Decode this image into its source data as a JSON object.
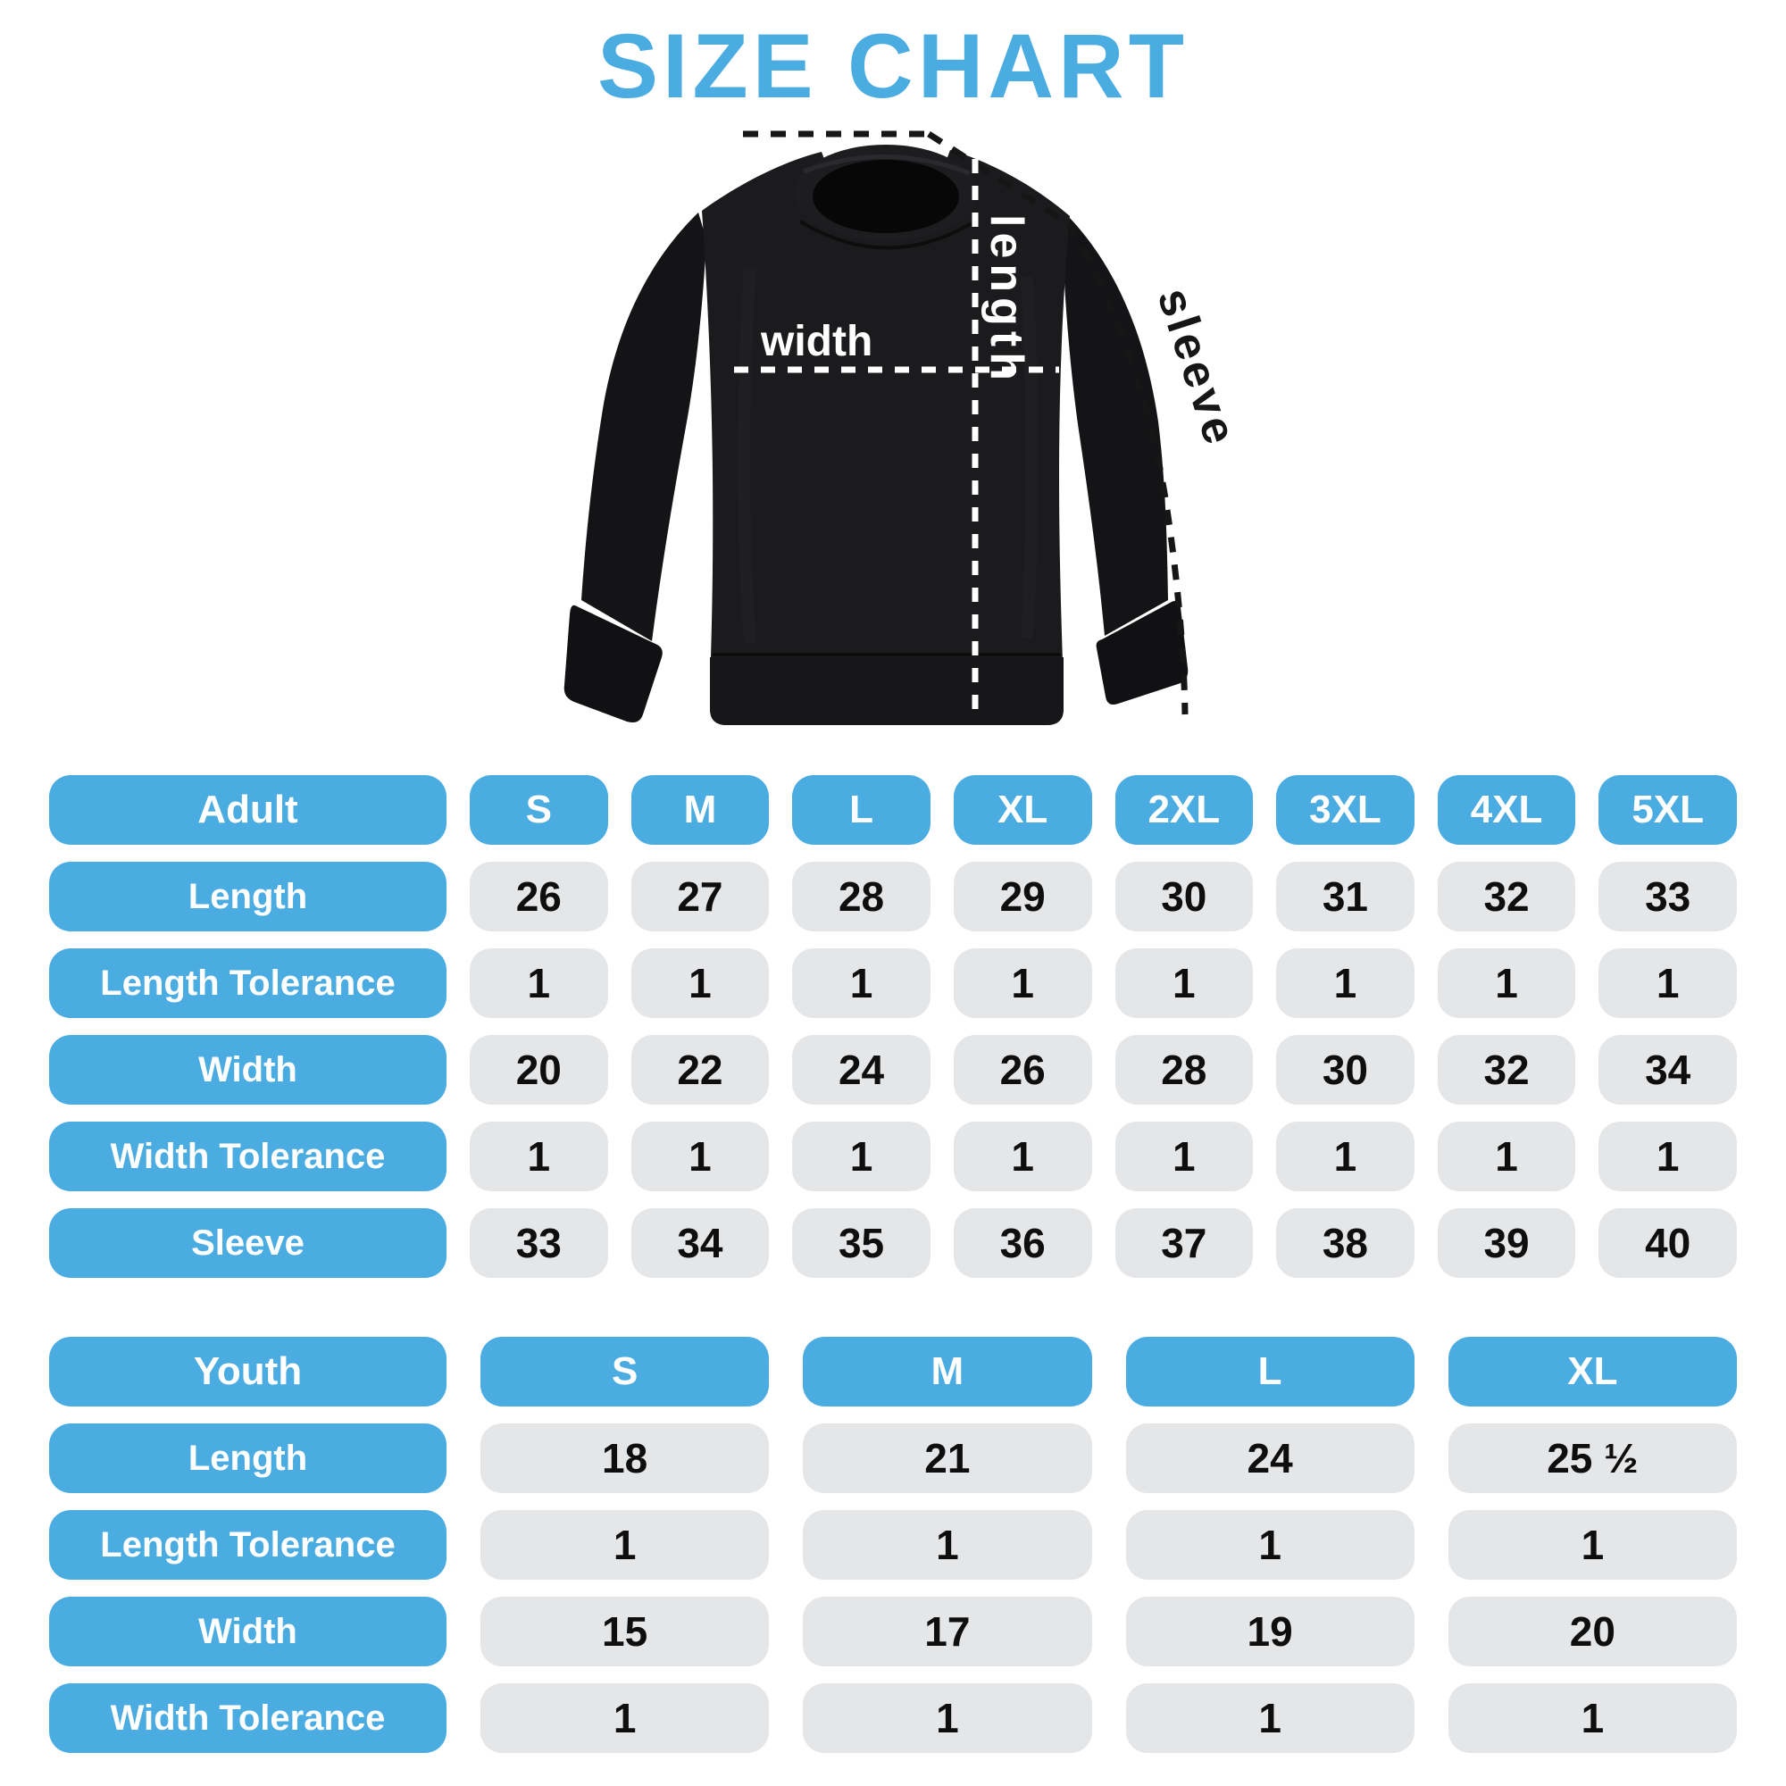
{
  "title": "SIZE CHART",
  "colors": {
    "accent_blue": "#4BACE2",
    "cell_gray": "#E5E6E8",
    "garment_black": "#1b1b1d",
    "label_white": "#ffffff"
  },
  "diagram": {
    "garment": "crewneck-sweatshirt",
    "width_label": "width",
    "length_label": "length",
    "sleeve_label": "sleeve"
  },
  "adult_table": {
    "header": [
      "Adult",
      "S",
      "M",
      "L",
      "XL",
      "2XL",
      "3XL",
      "4XL",
      "5XL"
    ],
    "rows": [
      {
        "label": "Length",
        "values": [
          "26",
          "27",
          "28",
          "29",
          "30",
          "31",
          "32",
          "33"
        ]
      },
      {
        "label": "Length Tolerance",
        "values": [
          "1",
          "1",
          "1",
          "1",
          "1",
          "1",
          "1",
          "1"
        ]
      },
      {
        "label": "Width",
        "values": [
          "20",
          "22",
          "24",
          "26",
          "28",
          "30",
          "32",
          "34"
        ]
      },
      {
        "label": "Width Tolerance",
        "values": [
          "1",
          "1",
          "1",
          "1",
          "1",
          "1",
          "1",
          "1"
        ]
      },
      {
        "label": "Sleeve",
        "values": [
          "33",
          "34",
          "35",
          "36",
          "37",
          "38",
          "39",
          "40"
        ]
      }
    ]
  },
  "youth_table": {
    "header": [
      "Youth",
      "S",
      "M",
      "L",
      "XL"
    ],
    "rows": [
      {
        "label": "Length",
        "values": [
          "18",
          "21",
          "24",
          "25 ½"
        ]
      },
      {
        "label": "Length Tolerance",
        "values": [
          "1",
          "1",
          "1",
          "1"
        ]
      },
      {
        "label": "Width",
        "values": [
          "15",
          "17",
          "19",
          "20"
        ]
      },
      {
        "label": "Width Tolerance",
        "values": [
          "1",
          "1",
          "1",
          "1"
        ]
      }
    ]
  }
}
